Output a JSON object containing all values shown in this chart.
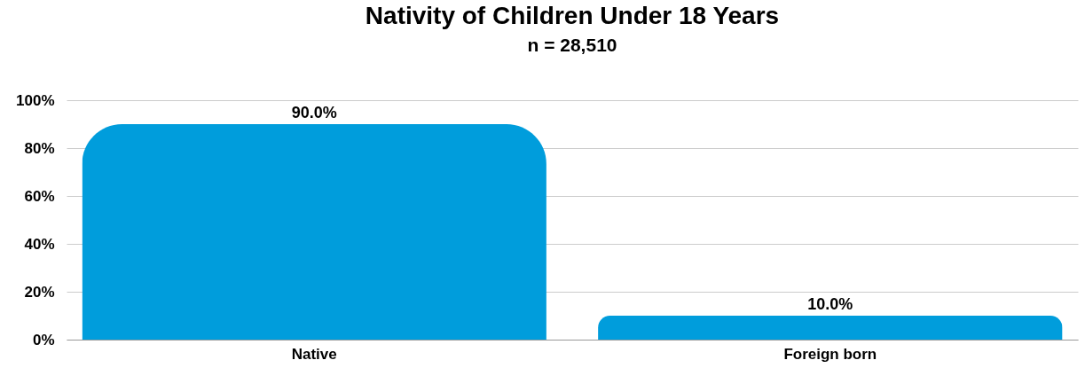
{
  "chart_data": {
    "type": "bar",
    "title": "Nativity of Children Under 18 Years",
    "subtitle": "n = 28,510",
    "categories": [
      "Native",
      "Foreign born"
    ],
    "values": [
      90,
      10
    ],
    "value_labels": [
      "90.0%",
      "10.0%"
    ],
    "color": "#009ddc",
    "ylim": [
      0,
      100
    ],
    "yticks": [
      {
        "value": 0,
        "label": "0%"
      },
      {
        "value": 20,
        "label": "20%"
      },
      {
        "value": 40,
        "label": "40%"
      },
      {
        "value": 60,
        "label": "60%"
      },
      {
        "value": 80,
        "label": "80%"
      },
      {
        "value": 100,
        "label": "100%"
      }
    ],
    "grid": "y"
  }
}
